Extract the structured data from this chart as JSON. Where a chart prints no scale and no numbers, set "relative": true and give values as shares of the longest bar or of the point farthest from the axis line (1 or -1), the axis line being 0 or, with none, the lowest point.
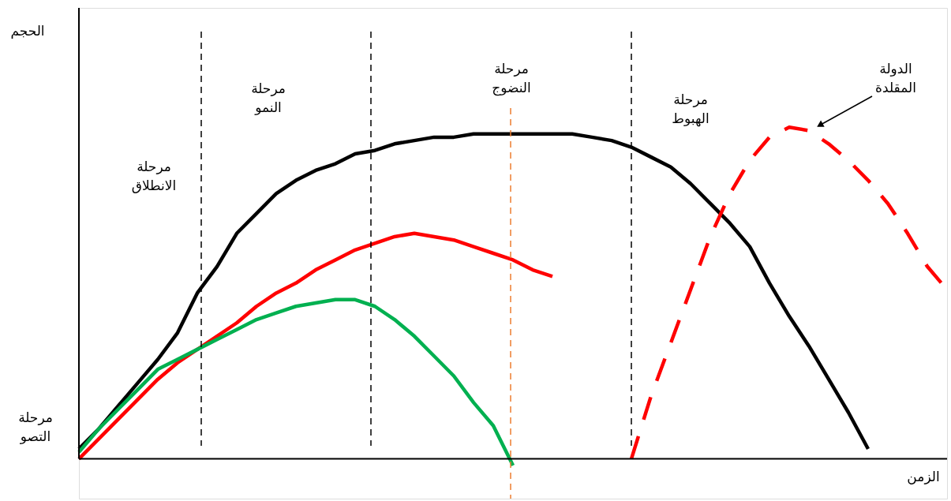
{
  "chart_data": {
    "type": "line",
    "relative": true,
    "xlabel": "الزمن",
    "categories": [
      null,
      null,
      null,
      null,
      null,
      null,
      null,
      null,
      null,
      null,
      null,
      null,
      null,
      null,
      null,
      null,
      null,
      null,
      null,
      null,
      null,
      null,
      null,
      null,
      null,
      null,
      null,
      null,
      null,
      null,
      null,
      null,
      null,
      null,
      null,
      null,
      null,
      null,
      null,
      null,
      null,
      null,
      null,
      null,
      null
    ],
    "series": [
      {
        "color": "#000000",
        "values": [
          0.03,
          0.09,
          0.16,
          0.23,
          0.3,
          0.38,
          0.5,
          0.58,
          0.68,
          0.74,
          0.8,
          0.84,
          0.87,
          0.89,
          0.92,
          0.93,
          0.95,
          0.96,
          0.97,
          0.97,
          0.98,
          0.98,
          0.98,
          0.98,
          0.98,
          0.98,
          0.97,
          0.96,
          0.94,
          0.91,
          0.88,
          0.83,
          0.77,
          0.71,
          0.64,
          0.53,
          0.43,
          0.34,
          0.24,
          0.14,
          0.03,
          null,
          null,
          null,
          null
        ]
      },
      {
        "color": "#ff0000",
        "values": [
          0,
          0.06,
          0.12,
          0.18,
          0.24,
          0.29,
          0.33,
          0.37,
          0.41,
          0.46,
          0.5,
          0.53,
          0.57,
          0.6,
          0.63,
          0.65,
          0.67,
          0.68,
          0.67,
          0.66,
          0.64,
          0.62,
          0.6,
          0.57,
          0.55,
          null,
          null,
          null,
          null,
          null,
          null,
          null,
          null,
          null,
          null,
          null,
          null,
          null,
          null,
          null,
          null,
          null,
          null,
          null,
          null
        ]
      },
      {
        "color": "#00b050",
        "values": [
          0.02,
          0.09,
          0.15,
          0.21,
          0.27,
          0.3,
          0.33,
          0.36,
          0.39,
          0.42,
          0.44,
          0.46,
          0.47,
          0.48,
          0.48,
          0.46,
          0.42,
          0.37,
          0.31,
          0.25,
          0.17,
          0.1,
          -0.02,
          null,
          null,
          null,
          null,
          null,
          null,
          null,
          null,
          null,
          null,
          null,
          null,
          null,
          null,
          null,
          null,
          null,
          null,
          null,
          null,
          null,
          null
        ]
      },
      {
        "color": "#ff0000",
        "line_style": "dashed",
        "values": [
          null,
          null,
          null,
          null,
          null,
          null,
          null,
          null,
          null,
          null,
          null,
          null,
          null,
          null,
          null,
          null,
          null,
          null,
          null,
          null,
          null,
          null,
          null,
          null,
          null,
          null,
          null,
          null,
          0,
          0.19,
          0.35,
          0.51,
          0.67,
          0.8,
          0.9,
          0.97,
          1,
          0.99,
          0.95,
          0.9,
          0.84,
          0.77,
          0.68,
          0.58,
          0.51
        ]
      }
    ],
    "annotations": [
      "مرحلة\nالتصو",
      "مرحلة\nالانطلاق",
      "مرحلة\nالنمو",
      "مرحلة\nالنضوج",
      "مرحلة\nالهبوط",
      "الدولة\nالمقلدة",
      "الحجم"
    ]
  }
}
